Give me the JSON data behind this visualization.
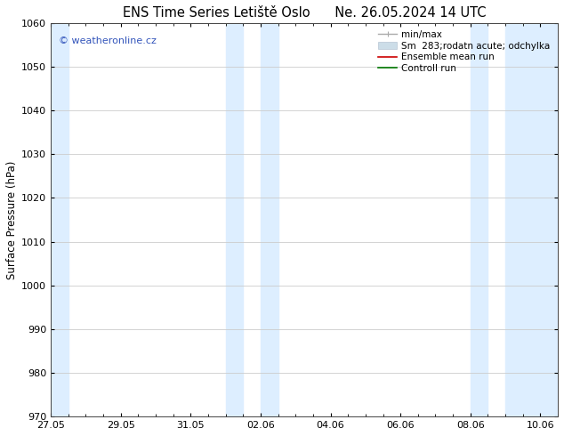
{
  "title_left": "ENS Time Series Letiště Oslo",
  "title_right": "Ne. 26.05.2024 14 UTC",
  "ylabel": "Surface Pressure (hPa)",
  "ylim": [
    970,
    1060
  ],
  "yticks": [
    970,
    980,
    990,
    1000,
    1010,
    1020,
    1030,
    1040,
    1050,
    1060
  ],
  "xtick_labels": [
    "27.05",
    "29.05",
    "31.05",
    "02.06",
    "04.06",
    "06.06",
    "08.06",
    "10.06"
  ],
  "xtick_positions": [
    0,
    2,
    4,
    6,
    8,
    10,
    12,
    14
  ],
  "xlim": [
    0,
    14.5
  ],
  "shaded_bands": [
    {
      "x_start": 0.0,
      "x_end": 0.5
    },
    {
      "x_start": 5.0,
      "x_end": 5.5
    },
    {
      "x_start": 6.0,
      "x_end": 6.5
    },
    {
      "x_start": 12.0,
      "x_end": 12.5
    },
    {
      "x_start": 13.0,
      "x_end": 14.5
    }
  ],
  "band_color": "#ddeeff",
  "watermark_text": "© weatheronline.cz",
  "watermark_color": "#3355bb",
  "bg_color": "#ffffff",
  "plot_bg_color": "#ffffff",
  "grid_color": "#cccccc",
  "title_fontsize": 10.5,
  "tick_fontsize": 8,
  "ylabel_fontsize": 8.5,
  "legend_fontsize": 7.5,
  "minmax_color": "#aaaaaa",
  "odchylka_color": "#ccdde8",
  "ensemble_color": "#cc0000",
  "control_color": "#007700"
}
